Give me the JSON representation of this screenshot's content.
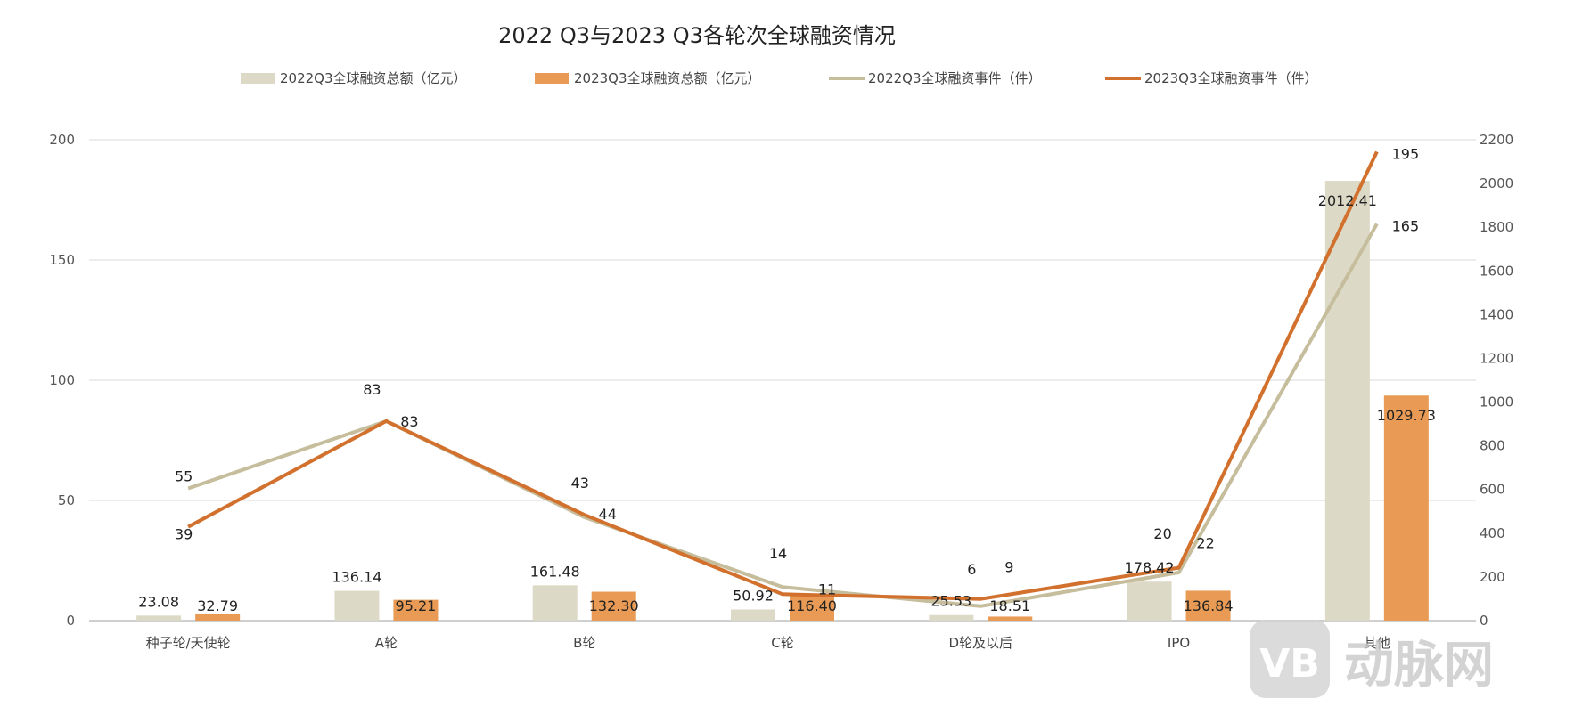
{
  "chart_data": {
    "type": "bar",
    "title": "2022 Q3与2023 Q3各轮次全球融资情况",
    "categories": [
      "种子轮/天使轮",
      "A轮",
      "B轮",
      "C轮",
      "D轮及以后",
      "IPO",
      "其他"
    ],
    "left_axis": {
      "ylim": [
        0,
        200
      ],
      "ticks": [
        "0",
        "50",
        "100",
        "150",
        "200"
      ]
    },
    "right_axis": {
      "ylim": [
        0,
        2200
      ],
      "ticks": [
        "0",
        "200",
        "400",
        "600",
        "800",
        "1000",
        "1200",
        "1400",
        "1600",
        "1800",
        "2000",
        "2200"
      ]
    },
    "series": [
      {
        "name": "2022Q3全球融资总额（亿元）",
        "type": "bar",
        "axis": "right",
        "color": "#dcd9c6",
        "values": [
          23.08,
          136.14,
          161.48,
          50.92,
          25.53,
          178.42,
          2012.41
        ],
        "labels": [
          "23.08",
          "136.14",
          "161.48",
          "50.92",
          "25.53",
          "178.42",
          "2012.41"
        ]
      },
      {
        "name": "2023Q3全球融资总额（亿元）",
        "type": "bar",
        "axis": "right",
        "color": "#e99b55",
        "values": [
          32.79,
          95.21,
          132.3,
          116.4,
          18.51,
          136.84,
          1029.73
        ],
        "labels": [
          "32.79",
          "95.21",
          "132.30",
          "116.40",
          "18.51",
          "136.84",
          "1029.73"
        ]
      },
      {
        "name": "2022Q3全球融资事件（件）",
        "type": "line",
        "axis": "left",
        "color": "#c5bd9c",
        "values": [
          55,
          83,
          43,
          14,
          6,
          20,
          165
        ],
        "labels": [
          "55",
          "83",
          "43",
          "14",
          "6",
          "20",
          "165"
        ]
      },
      {
        "name": "2023Q3全球融资事件（件）",
        "type": "line",
        "axis": "left",
        "color": "#d2712d",
        "values": [
          39,
          83,
          44,
          11,
          9,
          22,
          195
        ],
        "labels": [
          "39",
          "83",
          "44",
          "11",
          "9",
          "22",
          "195"
        ]
      }
    ]
  },
  "watermark": {
    "text": "动脉网",
    "logo_letters": "VB"
  }
}
